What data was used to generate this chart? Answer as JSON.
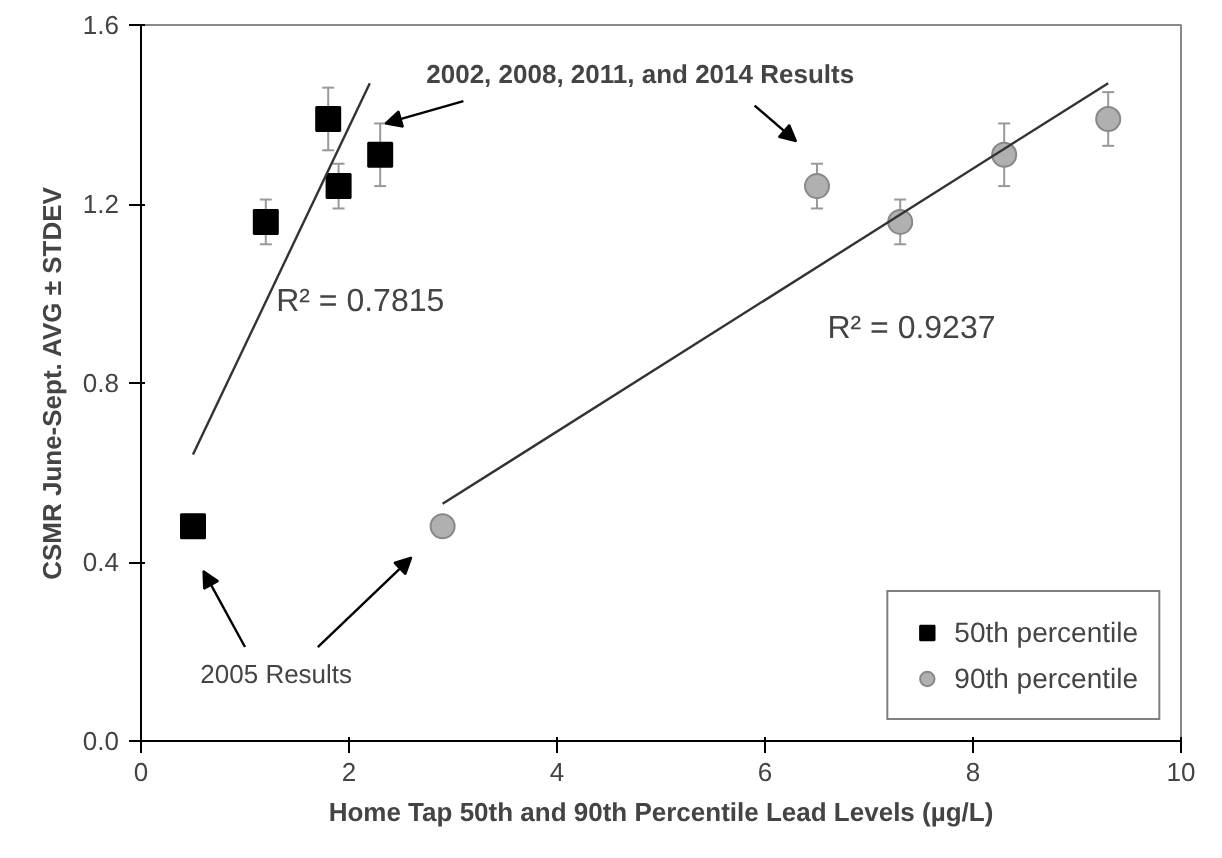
{
  "chart_data": {
    "type": "scatter",
    "xlabel": "Home Tap 50th and 90th Percentile Lead Levels (µg/L)",
    "ylabel": "CSMR June-Sept. AVG ± STDEV",
    "xlim": [
      0,
      10
    ],
    "xticks": [
      0,
      2,
      4,
      6,
      8,
      10
    ],
    "ylim": [
      0,
      1.6
    ],
    "yticks": [
      {
        "value": 0,
        "label": "0.0"
      },
      {
        "value": 0.4,
        "label": "0.4"
      },
      {
        "value": 0.8,
        "label": "0.8"
      },
      {
        "value": 1.2,
        "label": "1.2"
      },
      {
        "value": 1.6,
        "label": "1.6"
      }
    ],
    "grid": false,
    "legend": "bottom right",
    "series": [
      {
        "name": "50th percentile",
        "marker": "square",
        "color": "#000000",
        "x": [
          0.5,
          1.2,
          1.8,
          1.9,
          2.3
        ],
        "values": [
          0.48,
          1.16,
          1.39,
          1.24,
          1.31
        ],
        "errors": [
          null,
          0.05,
          0.07,
          0.05,
          0.07
        ]
      },
      {
        "name": "90th percentile",
        "marker": "circle",
        "color": "#b0b0b0",
        "x": [
          2.9,
          6.5,
          7.3,
          8.3,
          9.3
        ],
        "values": [
          0.48,
          1.24,
          1.16,
          1.31,
          1.39
        ],
        "errors": [
          null,
          0.05,
          0.05,
          0.07,
          0.06
        ]
      },
      {
        "type": "line",
        "color": "#333333",
        "x": [
          0.5,
          2.2
        ],
        "values": [
          0.64,
          1.47
        ]
      },
      {
        "type": "line",
        "color": "#333333",
        "x": [
          2.9,
          9.3
        ],
        "values": [
          0.53,
          1.47
        ]
      }
    ],
    "annotations": [
      {
        "text": "2002, 2008, 2011, and 2014 Results",
        "x": 2.35,
        "y": 1.38
      },
      "2005 Results",
      "R² = 0.7815",
      "R² = 0.9237"
    ]
  }
}
